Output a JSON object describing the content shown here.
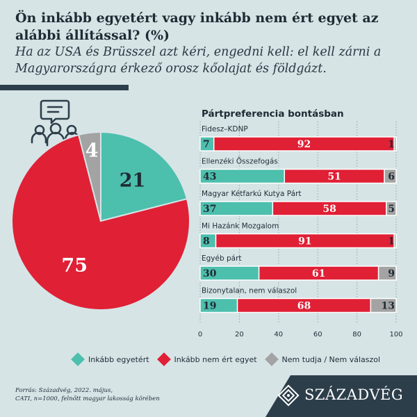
{
  "header": {
    "title": "Ön inkább egyetért vagy inkább nem ért egyet az alábbi állítással? (%)",
    "subtitle": "Ha az USA és Brüsszel azt kéri, engedni kell: el kell zárni a Magyarországra érkező orosz kőolajat és földgázt."
  },
  "colors": {
    "agree": "#4dbfad",
    "disagree": "#e02035",
    "unknown": "#a3a3a3",
    "dark": "#2c3e4a"
  },
  "chart_data": [
    {
      "type": "pie",
      "categories": [
        "Inkább egyetért",
        "Inkább nem ért egyet",
        "Nem tudja / Nem válaszol"
      ],
      "values": [
        21,
        75,
        4
      ]
    },
    {
      "type": "bar",
      "orientation": "horizontal",
      "stacked": true,
      "title": "Pártpreferencia bontásban",
      "categories": [
        "Fidesz–KDNP",
        "Ellenzéki Összefogás",
        "Magyar Kétfarkú Kutya Párt",
        "Mi Hazánk Mozgalom",
        "Egyéb párt",
        "Bizonytalan, nem válaszol"
      ],
      "series": [
        {
          "name": "Inkább egyetért",
          "values": [
            7,
            43,
            37,
            8,
            30,
            19
          ]
        },
        {
          "name": "Inkább nem ért egyet",
          "values": [
            92,
            51,
            58,
            91,
            61,
            68
          ]
        },
        {
          "name": "Nem tudja / Nem válaszol",
          "values": [
            1,
            6,
            5,
            1,
            9,
            13
          ]
        }
      ],
      "xlim": [
        0,
        100
      ],
      "xticks": [
        "0",
        "20",
        "40",
        "60",
        "80",
        "100"
      ],
      "grid": true
    }
  ],
  "legend": [
    {
      "label": "Inkább egyetért"
    },
    {
      "label": "Inkább nem ért egyet"
    },
    {
      "label": "Nem tudja / Nem válaszol"
    }
  ],
  "source": {
    "line1": "Forrás: Századvég, 2022. május,",
    "line2": "CATI, n=1000, felnőtt magyar lakosság körében"
  },
  "brand": {
    "name": "SZÁZADVÉG"
  },
  "icons": {
    "people": "people-chat-icon",
    "logo": "diamond-logo-icon"
  }
}
